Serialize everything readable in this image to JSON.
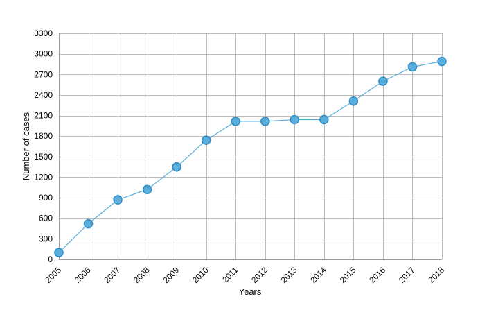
{
  "chart_data": {
    "type": "line",
    "title": "",
    "xlabel": "Years",
    "ylabel": "Number of cases",
    "x": [
      "2005",
      "2006",
      "2007",
      "2008",
      "2009",
      "2010",
      "2011",
      "2012",
      "2013",
      "2014",
      "2015",
      "2016",
      "2017",
      "2018"
    ],
    "y_ticks": [
      "0",
      "300",
      "600",
      "900",
      "1200",
      "1500",
      "1800",
      "2100",
      "2400",
      "2700",
      "3000",
      "3300"
    ],
    "ylim": [
      0,
      3300
    ],
    "grid": true,
    "legend": "none",
    "series": [
      {
        "values": [
          100,
          520,
          870,
          1020,
          1350,
          1740,
          2015,
          2015,
          2040,
          2040,
          2310,
          2600,
          2810,
          2890
        ],
        "color": "#5aaedc",
        "marker_fill": "#5aaedc",
        "marker_stroke": "#2f8cc4"
      }
    ]
  }
}
